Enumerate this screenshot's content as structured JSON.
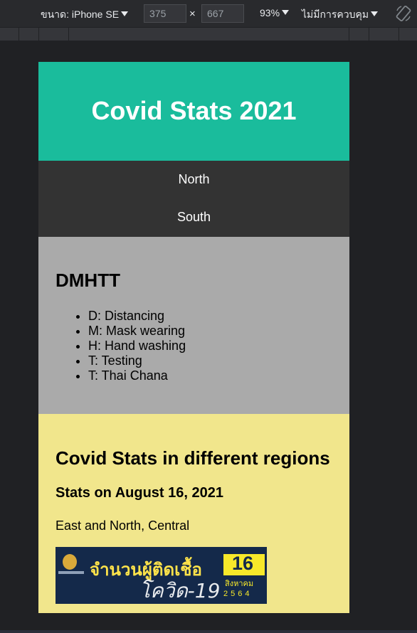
{
  "devtools": {
    "device_label": "ขนาด: iPhone SE",
    "width_value": "375",
    "height_value": "667",
    "times_symbol": "×",
    "zoom_label": "93%",
    "throttle_label": "ไม่มีการควบคุม"
  },
  "page": {
    "header_title": "Covid Stats 2021",
    "nav": [
      "North",
      "South"
    ],
    "dmhtt": {
      "title": "DMHTT",
      "items": [
        "D: Distancing",
        "M: Mask wearing",
        "H: Hand washing",
        "T: Testing",
        "T: Thai Chana"
      ]
    },
    "stats": {
      "title": "Covid Stats in different regions",
      "subtitle": "Stats on August 16, 2021",
      "regions": "East and North, Central"
    },
    "poster": {
      "headline": "จำนวนผู้ติดเชื้อ",
      "subline": "โควิด-19",
      "day": "16",
      "month": "สิงหาคม",
      "year": "2564"
    }
  },
  "colors": {
    "header_bg": "#1abc9c",
    "nav_bg": "#333333",
    "dmhtt_bg": "#aaaaaa",
    "stats_bg": "#f1e68c"
  }
}
